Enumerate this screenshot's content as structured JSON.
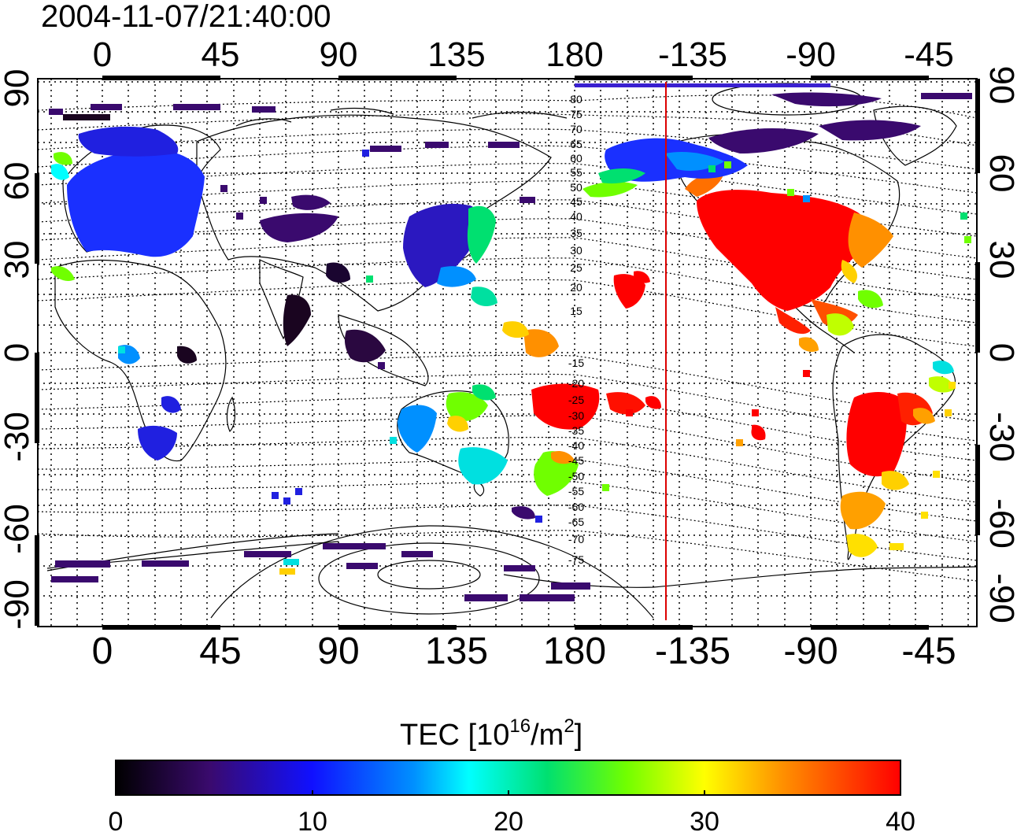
{
  "timestamp": "2004-11-07/21:40:00",
  "x_ticks_top": [
    "0",
    "45",
    "90",
    "135",
    "180",
    "-135",
    "-90",
    "-45"
  ],
  "x_ticks_bottom": [
    "0",
    "45",
    "90",
    "135",
    "180",
    "-135",
    "-90",
    "-45"
  ],
  "y_ticks_left": [
    "90",
    "60",
    "30",
    "0",
    "-30",
    "-60",
    "-90"
  ],
  "y_ticks_right": [
    "90",
    "60",
    "30",
    "0",
    "-30",
    "-60",
    "-90"
  ],
  "contour_labels": [
    "80",
    "75",
    "70",
    "65",
    "60",
    "55",
    "50",
    "45",
    "40",
    "35",
    "30",
    "25",
    "20",
    "15",
    "-15",
    "-20",
    "-25",
    "-30",
    "-35",
    "-40",
    "-45",
    "-50",
    "-55",
    "-60",
    "-65",
    "-70",
    "-75"
  ],
  "colorbar": {
    "label_main": "TEC  [10",
    "label_sup1": "16",
    "label_mid": "/m",
    "label_sup2": "2",
    "label_end": "]",
    "ticks": [
      "0",
      "10",
      "20",
      "30",
      "40"
    ],
    "range": [
      0,
      40
    ]
  },
  "terminator_longitude": -145,
  "colors": {
    "terminator": "#dd0000",
    "grid": "#000000"
  }
}
